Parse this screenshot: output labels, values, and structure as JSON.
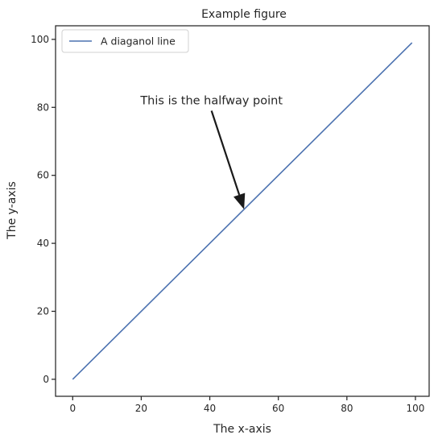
{
  "chart_data": {
    "type": "line",
    "title": "Example figure",
    "xlabel": "The x-axis",
    "ylabel": "The y-axis",
    "xlim": [
      -5,
      104
    ],
    "ylim": [
      -5,
      104
    ],
    "xticks": [
      0,
      20,
      40,
      60,
      80,
      100
    ],
    "yticks": [
      0,
      20,
      40,
      60,
      80,
      100
    ],
    "grid": false,
    "legend_position": "top-left",
    "series": [
      {
        "name": "A diaganol line",
        "color": "#4c72b0",
        "x": [
          0,
          99
        ],
        "y": [
          0,
          99
        ]
      }
    ],
    "annotations": [
      {
        "text": "This is the halfway point",
        "point": [
          50,
          50
        ],
        "text_at": [
          40.5,
          79
        ]
      }
    ]
  }
}
